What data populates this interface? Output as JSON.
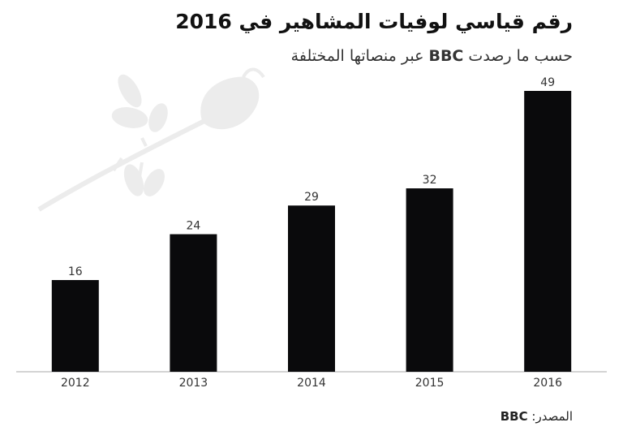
{
  "chart_data": {
    "type": "bar",
    "title": "رقم قياسي لوفيات المشاهير في 2016",
    "subtitle": [
      "حسب ما رصدت ",
      "BBC",
      " عبر منصاتها المختلفة"
    ],
    "source": {
      "label": "المصدر:",
      "name": "BBC"
    },
    "categories": [
      "2012",
      "2013",
      "2014",
      "2015",
      "2016"
    ],
    "values": [
      16,
      24,
      29,
      32,
      49
    ],
    "color": "#0a0a0c"
  }
}
